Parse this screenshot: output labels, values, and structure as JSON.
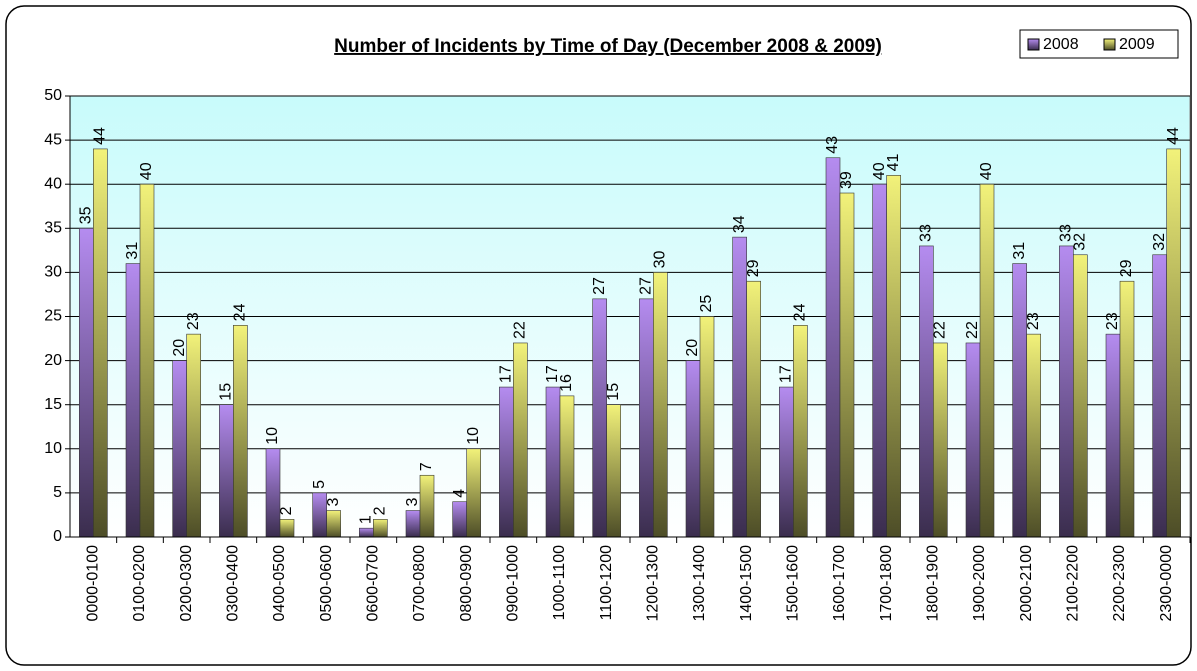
{
  "chart_data": {
    "type": "bar",
    "title": "Number of Incidents by Time of Day (December 2008 & 2009)",
    "categories": [
      "0000-0100",
      "0100-0200",
      "0200-0300",
      "0300-0400",
      "0400-0500",
      "0500-0600",
      "0600-0700",
      "0700-0800",
      "0800-0900",
      "0900-1000",
      "1000-1100",
      "1100-1200",
      "1200-1300",
      "1300-1400",
      "1400-1500",
      "1500-1600",
      "1600-1700",
      "1700-1800",
      "1800-1900",
      "1900-2000",
      "2000-2100",
      "2100-2200",
      "2200-2300",
      "2300-0000"
    ],
    "series": [
      {
        "name": "2008",
        "color": "#b58cf0",
        "values": [
          35,
          31,
          20,
          15,
          10,
          5,
          1,
          3,
          4,
          17,
          17,
          27,
          27,
          20,
          34,
          17,
          43,
          40,
          33,
          22,
          31,
          33,
          23,
          32
        ]
      },
      {
        "name": "2009",
        "color": "#f2f27a",
        "values": [
          44,
          40,
          23,
          24,
          2,
          3,
          2,
          7,
          10,
          22,
          16,
          15,
          30,
          25,
          29,
          24,
          39,
          41,
          22,
          40,
          23,
          32,
          29,
          44
        ]
      }
    ],
    "ylim": [
      0,
      50
    ],
    "yticks": [
      0,
      5,
      10,
      15,
      20,
      25,
      30,
      35,
      40,
      45,
      50
    ],
    "grid": true,
    "legend": "top-right",
    "data_labels": true
  }
}
